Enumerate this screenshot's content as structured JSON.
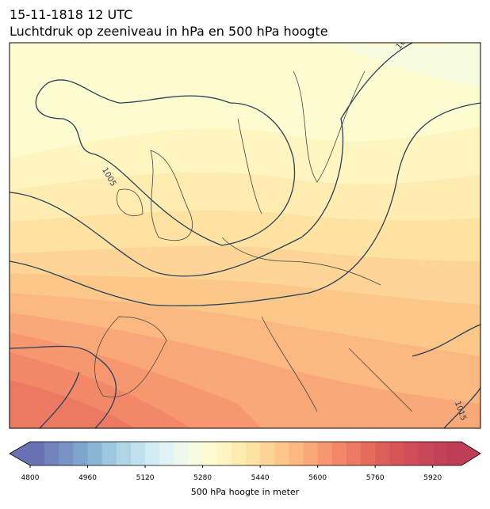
{
  "header": {
    "title": "15-11-1818 12 UTC",
    "subtitle": "Luchtdruk op zeeniveau in hPa en 500 hPa hoogte"
  },
  "map": {
    "contour_labels": [
      "1005",
      "1015",
      "10"
    ]
  },
  "colorbar": {
    "label": "500 hPa hoogte in meter",
    "lim": [
      4800,
      6000
    ],
    "ticks": [
      4800,
      4960,
      5120,
      5280,
      5440,
      5600,
      5760,
      5920
    ],
    "colors": [
      "#6a72b4",
      "#7083bc",
      "#7794c4",
      "#80a5cc",
      "#8ab6d4",
      "#9cc6dd",
      "#aed4e6",
      "#c0e1ee",
      "#d2ecf4",
      "#e2f3f5",
      "#eef8ee",
      "#f7fbe0",
      "#fdfbd0",
      "#fef5c0",
      "#feecb0",
      "#fee2a2",
      "#fdd596",
      "#fcc88a",
      "#fbb880",
      "#f9a877",
      "#f6976f",
      "#f28868",
      "#ec7a62",
      "#e56c5d",
      "#dd5f59",
      "#d65658",
      "#cf4e59",
      "#c94858",
      "#c44258",
      "#bf3d57"
    ]
  }
}
